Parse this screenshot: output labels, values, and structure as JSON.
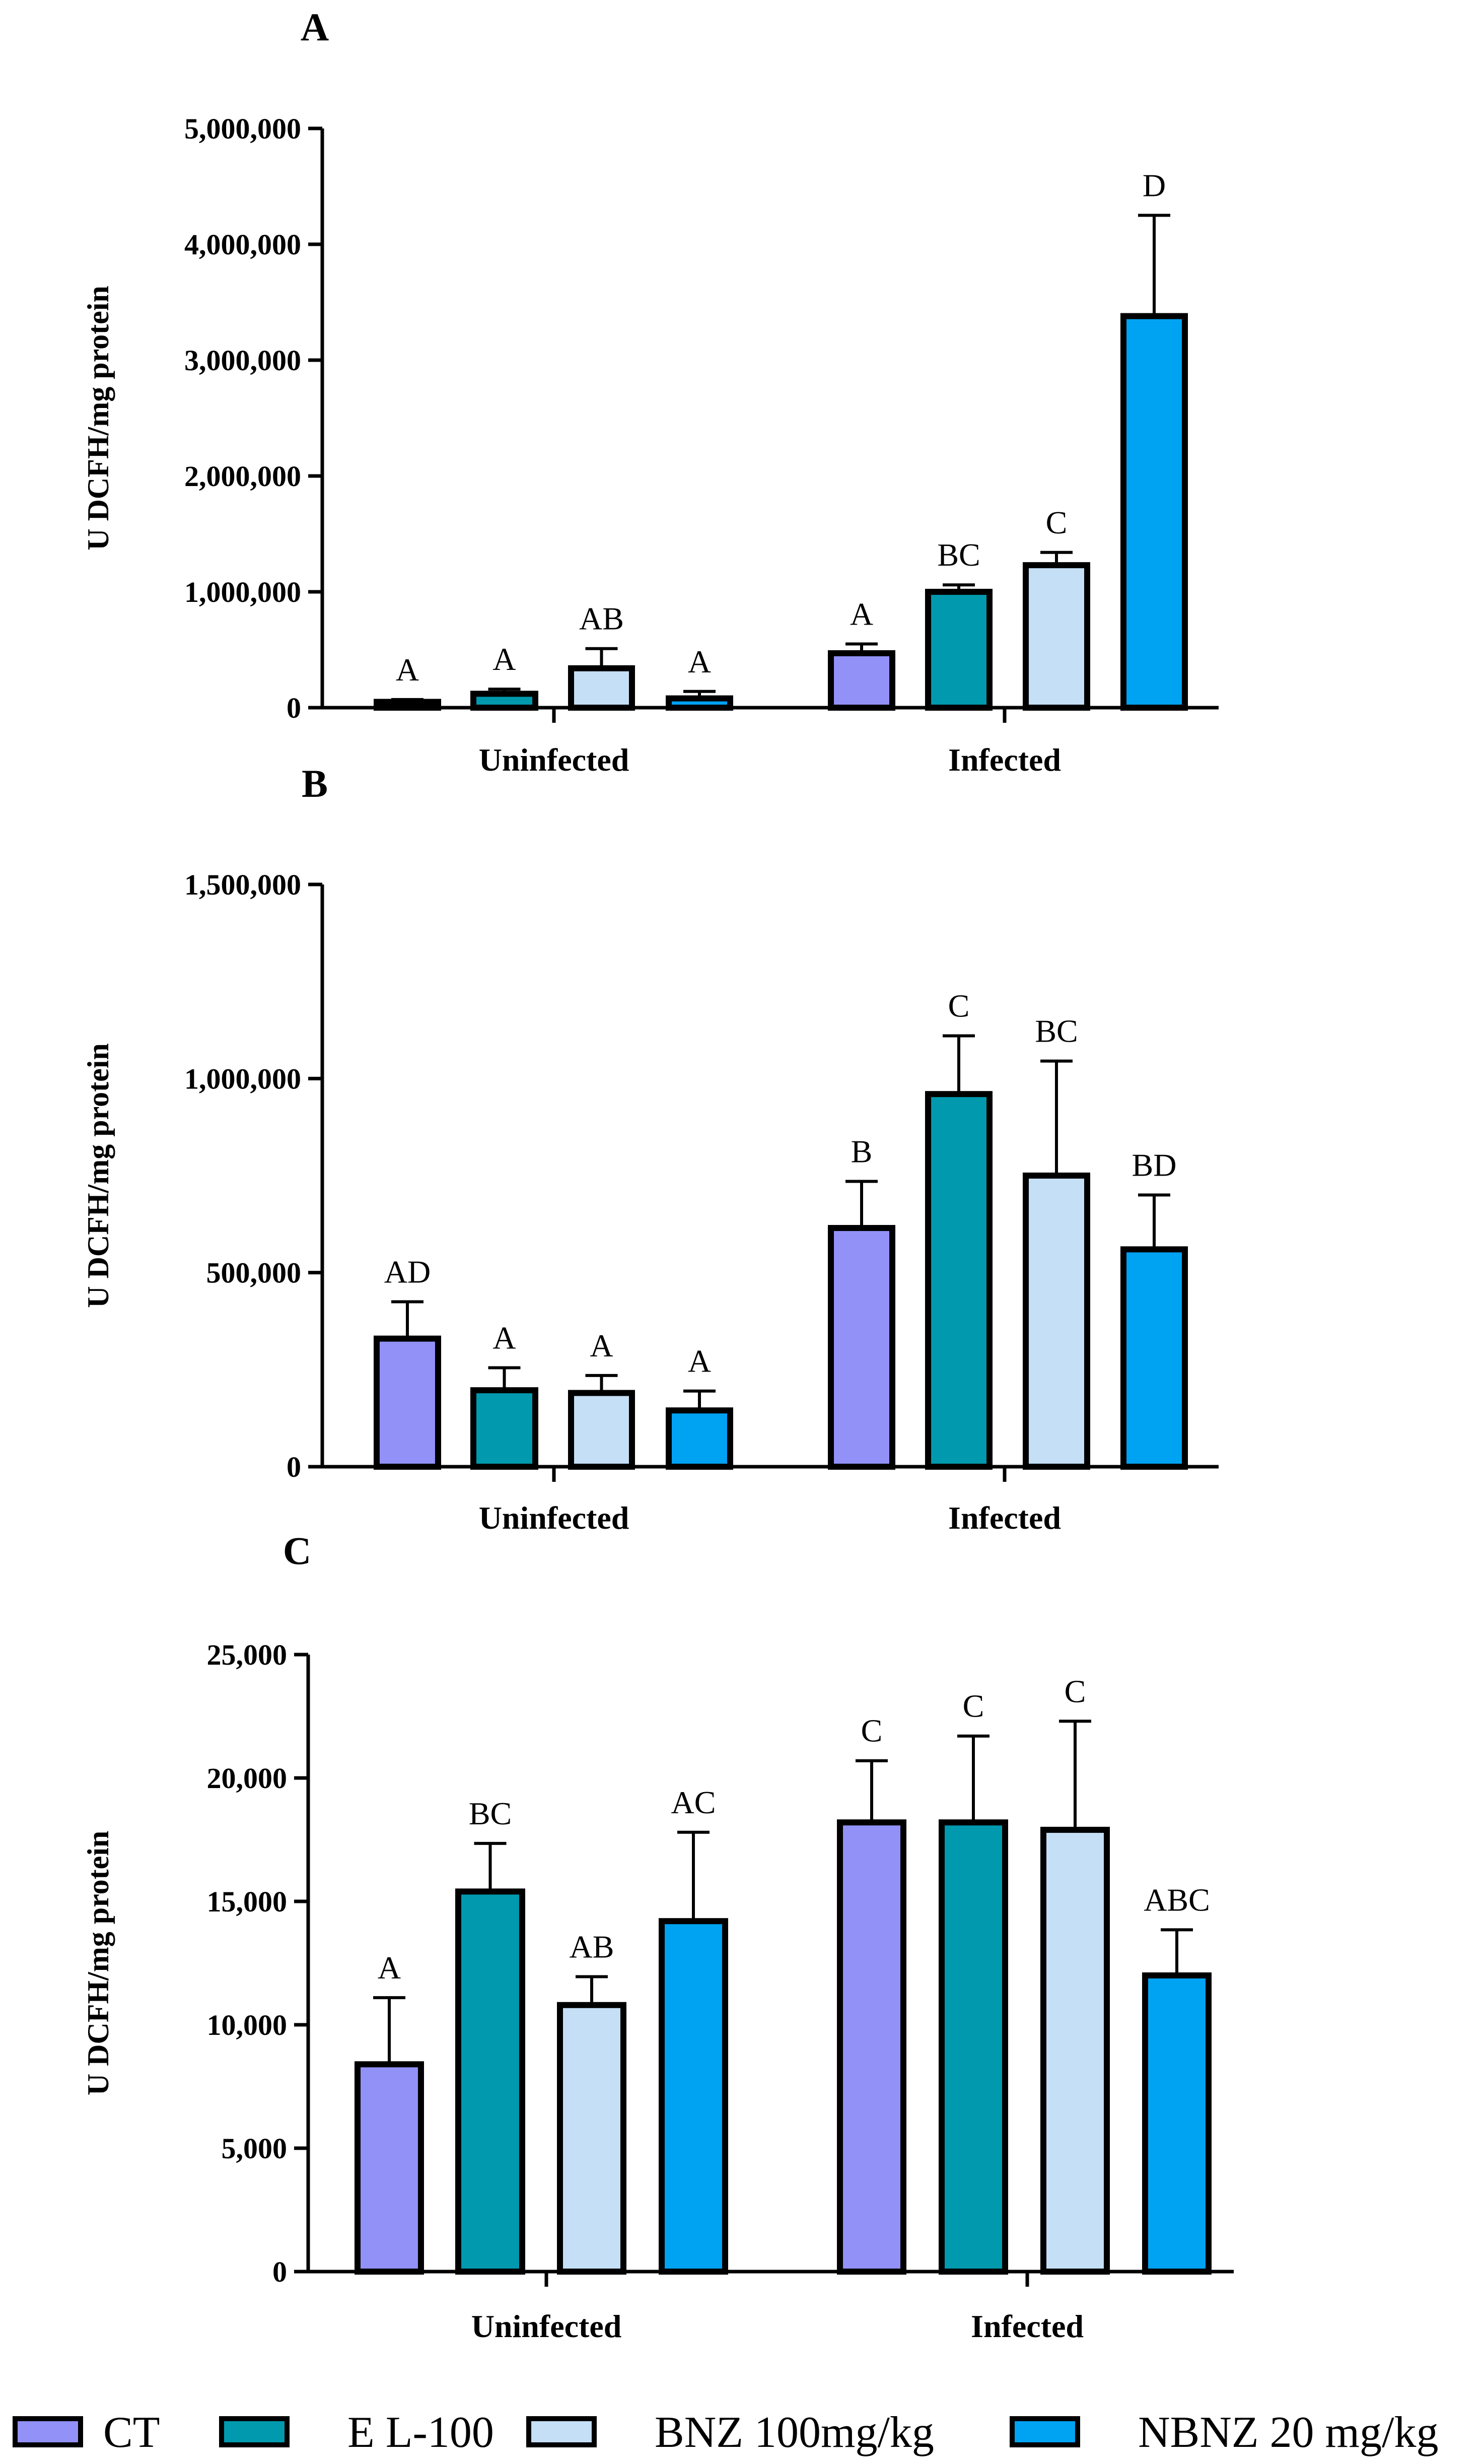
{
  "legend": [
    {
      "label": "CT",
      "color": "#9191F7"
    },
    {
      "label": "E L-100",
      "color": "#0099AE"
    },
    {
      "label": "BNZ 100mg/kg",
      "color": "#C4DFF6"
    },
    {
      "label": "NBNZ 20 mg/kg",
      "color": "#00A2F2"
    }
  ],
  "chart_data": [
    {
      "panel": "A",
      "type": "bar",
      "ylabel": "U DCFH/mg protein",
      "ylim": [
        0,
        5000000
      ],
      "yticks": [
        0,
        1000000,
        2000000,
        3000000,
        4000000,
        5000000
      ],
      "ytick_labels": [
        "0",
        "1,000,000",
        "2,000,000",
        "3,000,000",
        "4,000,000",
        "5,000,000"
      ],
      "categories": [
        "Uninfected",
        "Infected"
      ],
      "series": [
        {
          "name": "CT",
          "values": [
            50000,
            470000
          ],
          "errors": [
            20000,
            80000
          ],
          "labels": [
            "A",
            "A"
          ]
        },
        {
          "name": "E L-100",
          "values": [
            120000,
            1000000
          ],
          "errors": [
            40000,
            60000
          ],
          "labels": [
            "A",
            "BC"
          ]
        },
        {
          "name": "BNZ 100mg/kg",
          "values": [
            340000,
            1230000
          ],
          "errors": [
            170000,
            110000
          ],
          "labels": [
            "AB",
            "C"
          ]
        },
        {
          "name": "NBNZ 20 mg/kg",
          "values": [
            80000,
            3380000
          ],
          "errors": [
            60000,
            870000
          ],
          "labels": [
            "A",
            "D"
          ]
        }
      ]
    },
    {
      "panel": "B",
      "type": "bar",
      "ylabel": "U DCFH/mg protein",
      "ylim": [
        0,
        1500000
      ],
      "yticks": [
        0,
        500000,
        1000000,
        1500000
      ],
      "ytick_labels": [
        "0",
        "500,000",
        "1,000,000",
        "1,500,000"
      ],
      "categories": [
        "Uninfected",
        "Infected"
      ],
      "series": [
        {
          "name": "CT",
          "values": [
            330000,
            615000
          ],
          "errors": [
            95000,
            120000
          ],
          "labels": [
            "AD",
            "B"
          ]
        },
        {
          "name": "E L-100",
          "values": [
            197000,
            960000
          ],
          "errors": [
            58000,
            150000
          ],
          "labels": [
            "A",
            "C"
          ]
        },
        {
          "name": "BNZ 100mg/kg",
          "values": [
            190000,
            750000
          ],
          "errors": [
            45000,
            295000
          ],
          "labels": [
            "A",
            "BC"
          ]
        },
        {
          "name": "NBNZ 20 mg/kg",
          "values": [
            145000,
            560000
          ],
          "errors": [
            50000,
            140000
          ],
          "labels": [
            "A",
            "BD"
          ]
        }
      ]
    },
    {
      "panel": "C",
      "type": "bar",
      "ylabel": "U DCFH/mg protein",
      "ylim": [
        0,
        25000
      ],
      "yticks": [
        0,
        5000,
        10000,
        15000,
        20000,
        25000
      ],
      "ytick_labels": [
        "0",
        "5,000",
        "10,000",
        "15,000",
        "20,000",
        "25,000"
      ],
      "categories": [
        "Uninfected",
        "Infected"
      ],
      "series": [
        {
          "name": "CT",
          "values": [
            8400,
            18200
          ],
          "errors": [
            2700,
            2500
          ],
          "labels": [
            "A",
            "C"
          ]
        },
        {
          "name": "E L-100",
          "values": [
            15400,
            18200
          ],
          "errors": [
            1950,
            3500
          ],
          "labels": [
            "BC",
            "C"
          ]
        },
        {
          "name": "BNZ 100mg/kg",
          "values": [
            10800,
            17900
          ],
          "errors": [
            1150,
            4400
          ],
          "labels": [
            "AB",
            "C"
          ]
        },
        {
          "name": "NBNZ 20 mg/kg",
          "values": [
            14200,
            12000
          ],
          "errors": [
            3600,
            1850
          ],
          "labels": [
            "AC",
            "ABC"
          ]
        }
      ]
    }
  ]
}
